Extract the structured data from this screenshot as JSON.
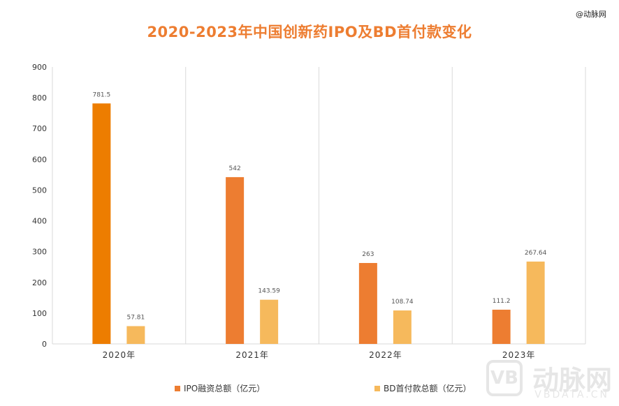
{
  "watermark_top": "@动脉网",
  "watermark_logo": {
    "vb": "VB",
    "name": "动脉网",
    "sub": "VBDATA.CN"
  },
  "colors": {
    "ipo_2020": "#ed7d00",
    "ipo": "#ed7d31",
    "bd": "#f6b95c",
    "grid": "#d9d9d9",
    "axis_text": "#333333",
    "label_text": "#555555"
  },
  "chart_data": {
    "type": "bar",
    "title": "2020-2023年中国创新药IPO及BD首付款变化",
    "categories": [
      "2020年",
      "2021年",
      "2022年",
      "2023年"
    ],
    "series": [
      {
        "name": "IPO融资总额（亿元）",
        "values": [
          781.5,
          542,
          263,
          111.2
        ],
        "labels": [
          "781.5",
          "542",
          "263",
          "111.2"
        ]
      },
      {
        "name": "BD首付款总额（亿元）",
        "values": [
          57.81,
          143.59,
          108.74,
          267.64
        ],
        "labels": [
          "57.81",
          "143.59",
          "108.74",
          "267.64"
        ]
      }
    ],
    "ylim": [
      0,
      900
    ],
    "yticks": [
      0,
      100,
      200,
      300,
      400,
      500,
      600,
      700,
      800,
      900
    ],
    "xlabel": "",
    "ylabel": "",
    "legend_position": "bottom",
    "grid": "vertical separators between categories"
  }
}
